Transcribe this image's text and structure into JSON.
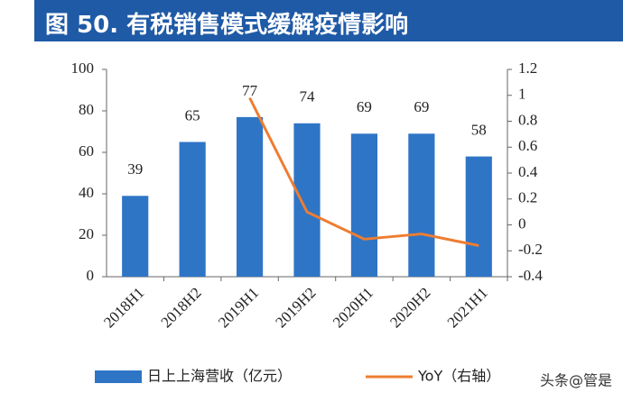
{
  "chart_data": {
    "type": "bar-line",
    "title": "图 50. 有税销售模式缓解疫情影响",
    "categories": [
      "2018H1",
      "2018H2",
      "2019H1",
      "2019H2",
      "2020H1",
      "2020H2",
      "2021H1"
    ],
    "series": [
      {
        "name": "日上上海营收（亿元）",
        "type": "bar",
        "color": "#2e75c6",
        "values": [
          39,
          65,
          77,
          74,
          69,
          69,
          58
        ]
      },
      {
        "name": "YoY（右轴）",
        "type": "line",
        "axis": "y2",
        "color": "#ed7d31",
        "values": [
          null,
          null,
          0.98,
          0.1,
          -0.11,
          -0.07,
          -0.16
        ]
      }
    ],
    "ylim": [
      0,
      100
    ],
    "yticks": [
      0,
      20,
      40,
      60,
      80,
      100
    ],
    "y2lim": [
      -0.4,
      1.2
    ],
    "y2ticks": [
      -0.4,
      -0.2,
      0,
      0.2,
      0.4,
      0.6,
      0.8,
      1,
      1.2
    ],
    "legend": "bottom",
    "watermark": "头条@管是"
  }
}
